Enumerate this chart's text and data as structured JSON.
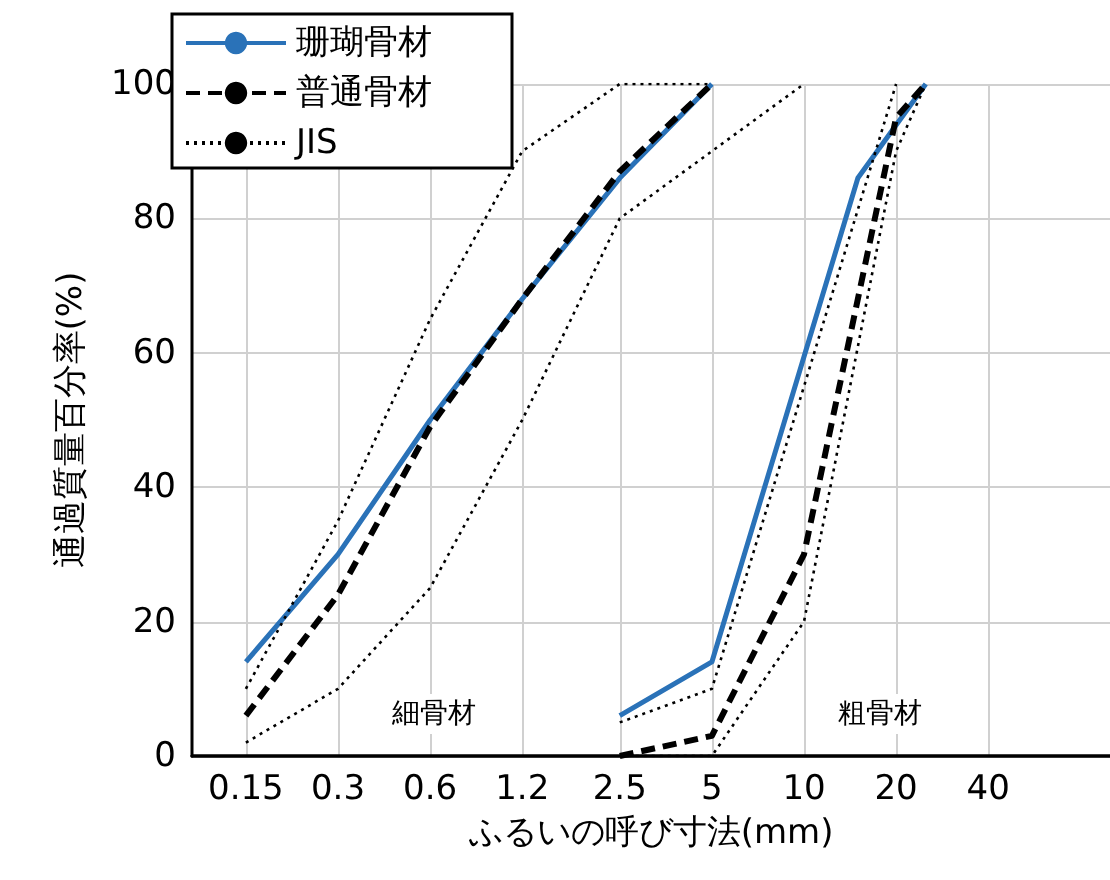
{
  "chart_data": {
    "type": "line",
    "xlabel": "ふるいの呼び寸法(mm)",
    "ylabel": "通過質量百分率(%)",
    "log": "x",
    "xlim": [
      0.1,
      100
    ],
    "xticks": [
      0.15,
      0.3,
      0.6,
      1.2,
      2.5,
      5,
      10,
      20,
      40
    ],
    "ylim": [
      0,
      100
    ],
    "yticks": [
      0,
      20,
      40,
      60,
      80,
      100
    ],
    "grid": true,
    "legend": "top left",
    "marker": "none",
    "series": [
      {
        "name": "珊瑚骨材",
        "color": "#2a72b8",
        "line_style": "solid",
        "x": [
          0.15,
          0.3,
          0.6,
          1.2,
          2.5,
          5
        ],
        "values": [
          14,
          30,
          50,
          68,
          86,
          100
        ]
      },
      {
        "color": "#2a72b8",
        "line_style": "solid",
        "x": [
          2.5,
          5,
          15,
          25
        ],
        "values": [
          6,
          14,
          86,
          100
        ]
      },
      {
        "name": "普通骨材",
        "color": "#000000",
        "line_style": "dashed",
        "x": [
          0.15,
          0.3,
          0.6,
          1.2,
          2.5,
          5
        ],
        "values": [
          6,
          24,
          49,
          68,
          87,
          100
        ]
      },
      {
        "color": "#000000",
        "line_style": "dashed",
        "x": [
          2.5,
          5,
          10,
          20,
          25
        ],
        "values": [
          0,
          3,
          30,
          95,
          100
        ]
      },
      {
        "name": "JIS",
        "color": "#000000",
        "line_style": "dotted",
        "x": [
          0.15,
          0.3,
          0.6,
          1.2,
          2.5,
          5
        ],
        "values": [
          10,
          35,
          65,
          90,
          100,
          100
        ]
      },
      {
        "color": "#000000",
        "line_style": "dotted",
        "x": [
          0.15,
          0.3,
          0.6,
          1.2,
          2.5,
          5,
          10
        ],
        "values": [
          2,
          10,
          25,
          50,
          80,
          90,
          100
        ]
      },
      {
        "color": "#000000",
        "line_style": "dotted",
        "x": [
          2.5,
          5,
          10,
          20
        ],
        "values": [
          5,
          10,
          55,
          100
        ]
      },
      {
        "color": "#000000",
        "line_style": "dotted",
        "x": [
          2.5,
          5,
          10,
          20,
          25
        ],
        "values": [
          0,
          0,
          20,
          90,
          100
        ]
      }
    ],
    "annotations": [
      "細骨材",
      "粗骨材"
    ]
  }
}
